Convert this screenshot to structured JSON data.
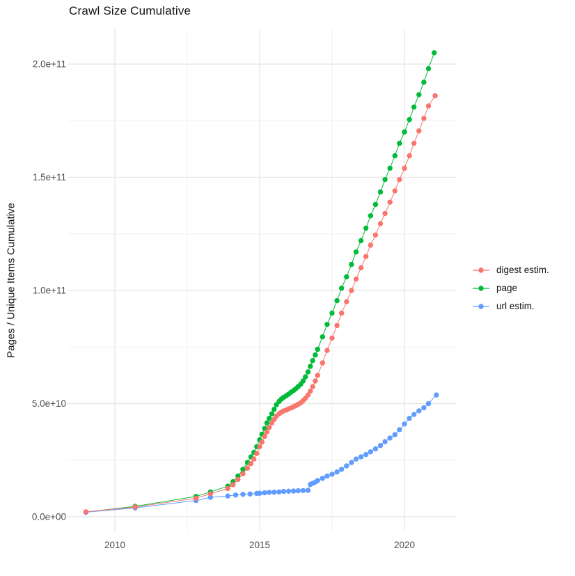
{
  "chart_data": {
    "type": "scatter",
    "title": "Crawl Size Cumulative",
    "xlabel": "",
    "ylabel": "Pages / Unique Items Cumulative",
    "legend_position": "right",
    "grid": true,
    "background": "#ffffff",
    "grid_major_color": "#e4e4e4",
    "grid_minor_color": "#f0f0f0",
    "axis_text_color": "#4d4d4d",
    "x_ticks": [
      {
        "label": "2010",
        "year": 2010
      },
      {
        "label": "2015",
        "year": 2015
      },
      {
        "label": "2020",
        "year": 2020
      }
    ],
    "x_minor_ticks": [
      2012.5,
      2017.5
    ],
    "y_ticks": [
      {
        "label": "0.0e+00",
        "value_billions": 0
      },
      {
        "label": "5.0e+10",
        "value_billions": 50
      },
      {
        "label": "1.0e+11",
        "value_billions": 100
      },
      {
        "label": "1.5e+11",
        "value_billions": 150
      },
      {
        "label": "2.0e+11",
        "value_billions": 200
      }
    ],
    "y_minor_ticks_billions": [
      25,
      75,
      125,
      175
    ],
    "x_range": [
      2008.4,
      2021.7
    ],
    "y_range_billions": [
      -10,
      217
    ],
    "values_unit": "pages (value_billions x 1e9)",
    "series": [
      {
        "name": "page",
        "color": "#00BA38",
        "points": [
          [
            2009.0,
            2.1
          ],
          [
            2010.7,
            4.6
          ],
          [
            2012.8,
            9
          ],
          [
            2013.3,
            11
          ],
          [
            2013.9,
            13.5
          ],
          [
            2014.08,
            15.5
          ],
          [
            2014.25,
            18
          ],
          [
            2014.42,
            21
          ],
          [
            2014.58,
            24
          ],
          [
            2014.7,
            26.5
          ],
          [
            2014.8,
            28.5
          ],
          [
            2014.9,
            31
          ],
          [
            2015.0,
            34
          ],
          [
            2015.08,
            36.5
          ],
          [
            2015.17,
            39
          ],
          [
            2015.25,
            41.5
          ],
          [
            2015.33,
            43.5
          ],
          [
            2015.42,
            45.5
          ],
          [
            2015.5,
            47.5
          ],
          [
            2015.58,
            49.5
          ],
          [
            2015.67,
            51
          ],
          [
            2015.75,
            52
          ],
          [
            2015.83,
            52.8
          ],
          [
            2015.92,
            53.5
          ],
          [
            2016.0,
            54.2
          ],
          [
            2016.08,
            55
          ],
          [
            2016.17,
            55.8
          ],
          [
            2016.25,
            56.6
          ],
          [
            2016.33,
            57.5
          ],
          [
            2016.42,
            58.6
          ],
          [
            2016.5,
            60
          ],
          [
            2016.58,
            61.8
          ],
          [
            2016.67,
            64
          ],
          [
            2016.75,
            66.5
          ],
          [
            2016.83,
            69
          ],
          [
            2016.92,
            71.5
          ],
          [
            2017.0,
            74
          ],
          [
            2017.17,
            79.5
          ],
          [
            2017.33,
            85
          ],
          [
            2017.5,
            90
          ],
          [
            2017.67,
            95.5
          ],
          [
            2017.83,
            101
          ],
          [
            2018.0,
            106
          ],
          [
            2018.17,
            111.5
          ],
          [
            2018.33,
            117
          ],
          [
            2018.5,
            122
          ],
          [
            2018.67,
            127.5
          ],
          [
            2018.83,
            133
          ],
          [
            2019.0,
            138
          ],
          [
            2019.17,
            143.5
          ],
          [
            2019.33,
            149
          ],
          [
            2019.5,
            154
          ],
          [
            2019.67,
            159.5
          ],
          [
            2019.83,
            165
          ],
          [
            2020.0,
            170
          ],
          [
            2020.17,
            175.5
          ],
          [
            2020.33,
            181
          ],
          [
            2020.5,
            186.5
          ],
          [
            2020.67,
            192
          ],
          [
            2020.83,
            198
          ],
          [
            2021.03,
            205
          ]
        ]
      },
      {
        "name": "url estim.",
        "color": "#619CFF",
        "points": [
          [
            2009.0,
            2.0
          ],
          [
            2010.7,
            3.9
          ],
          [
            2012.8,
            7.2
          ],
          [
            2013.3,
            8.6
          ],
          [
            2013.9,
            9.2
          ],
          [
            2014.17,
            9.6
          ],
          [
            2014.42,
            9.9
          ],
          [
            2014.67,
            10.1
          ],
          [
            2014.9,
            10.3
          ],
          [
            2015.0,
            10.4
          ],
          [
            2015.17,
            10.6
          ],
          [
            2015.33,
            10.8
          ],
          [
            2015.5,
            10.9
          ],
          [
            2015.67,
            11.0
          ],
          [
            2015.83,
            11.2
          ],
          [
            2016.0,
            11.3
          ],
          [
            2016.17,
            11.4
          ],
          [
            2016.33,
            11.5
          ],
          [
            2016.5,
            11.6
          ],
          [
            2016.67,
            11.7
          ],
          [
            2016.75,
            14.3
          ],
          [
            2016.83,
            14.8
          ],
          [
            2016.92,
            15.3
          ],
          [
            2017.0,
            16
          ],
          [
            2017.17,
            17
          ],
          [
            2017.33,
            18
          ],
          [
            2017.5,
            18.8
          ],
          [
            2017.67,
            19.8
          ],
          [
            2017.83,
            21
          ],
          [
            2018.0,
            22.5
          ],
          [
            2018.17,
            24
          ],
          [
            2018.33,
            25.5
          ],
          [
            2018.5,
            26.5
          ],
          [
            2018.67,
            27.5
          ],
          [
            2018.83,
            28.7
          ],
          [
            2019.0,
            30
          ],
          [
            2019.17,
            31.5
          ],
          [
            2019.33,
            33.2
          ],
          [
            2019.5,
            34.8
          ],
          [
            2019.67,
            36.3
          ],
          [
            2019.83,
            38.5
          ],
          [
            2020.0,
            41
          ],
          [
            2020.17,
            43.5
          ],
          [
            2020.33,
            45.2
          ],
          [
            2020.5,
            46.8
          ],
          [
            2020.67,
            48.2
          ],
          [
            2020.83,
            50
          ],
          [
            2021.1,
            53.8
          ]
        ]
      },
      {
        "name": "digest estim.",
        "color": "#F8766D",
        "points": [
          [
            2009.0,
            2.2
          ],
          [
            2010.7,
            4.3
          ],
          [
            2012.8,
            8.2
          ],
          [
            2013.3,
            10.2
          ],
          [
            2013.9,
            12.5
          ],
          [
            2014.08,
            14.2
          ],
          [
            2014.25,
            16.5
          ],
          [
            2014.42,
            19
          ],
          [
            2014.58,
            21.5
          ],
          [
            2014.7,
            23.5
          ],
          [
            2014.8,
            25.5
          ],
          [
            2014.9,
            28
          ],
          [
            2015.0,
            31
          ],
          [
            2015.08,
            33
          ],
          [
            2015.17,
            35.5
          ],
          [
            2015.25,
            37.5
          ],
          [
            2015.33,
            39.5
          ],
          [
            2015.42,
            41.5
          ],
          [
            2015.5,
            43
          ],
          [
            2015.58,
            44.5
          ],
          [
            2015.67,
            45.5
          ],
          [
            2015.75,
            46.2
          ],
          [
            2015.83,
            46.8
          ],
          [
            2015.92,
            47.2
          ],
          [
            2016.0,
            47.7
          ],
          [
            2016.08,
            48.1
          ],
          [
            2016.17,
            48.6
          ],
          [
            2016.25,
            49.1
          ],
          [
            2016.33,
            49.7
          ],
          [
            2016.42,
            50.4
          ],
          [
            2016.5,
            51.3
          ],
          [
            2016.58,
            52.4
          ],
          [
            2016.67,
            53.8
          ],
          [
            2016.75,
            55.5
          ],
          [
            2016.83,
            57.5
          ],
          [
            2016.92,
            60
          ],
          [
            2017.0,
            62.5
          ],
          [
            2017.17,
            68
          ],
          [
            2017.33,
            73.5
          ],
          [
            2017.5,
            79
          ],
          [
            2017.67,
            84.5
          ],
          [
            2017.83,
            90
          ],
          [
            2018.0,
            95
          ],
          [
            2018.17,
            100
          ],
          [
            2018.33,
            105
          ],
          [
            2018.5,
            110
          ],
          [
            2018.67,
            115
          ],
          [
            2018.83,
            120
          ],
          [
            2019.0,
            124.5
          ],
          [
            2019.17,
            129.5
          ],
          [
            2019.33,
            134
          ],
          [
            2019.5,
            139
          ],
          [
            2019.67,
            144
          ],
          [
            2019.83,
            149
          ],
          [
            2020.0,
            154
          ],
          [
            2020.17,
            159.5
          ],
          [
            2020.33,
            165
          ],
          [
            2020.5,
            170.5
          ],
          [
            2020.67,
            176
          ],
          [
            2020.83,
            181.5
          ],
          [
            2021.06,
            186
          ]
        ]
      }
    ],
    "legend_order": [
      "digest estim.",
      "page",
      "url estim."
    ]
  }
}
